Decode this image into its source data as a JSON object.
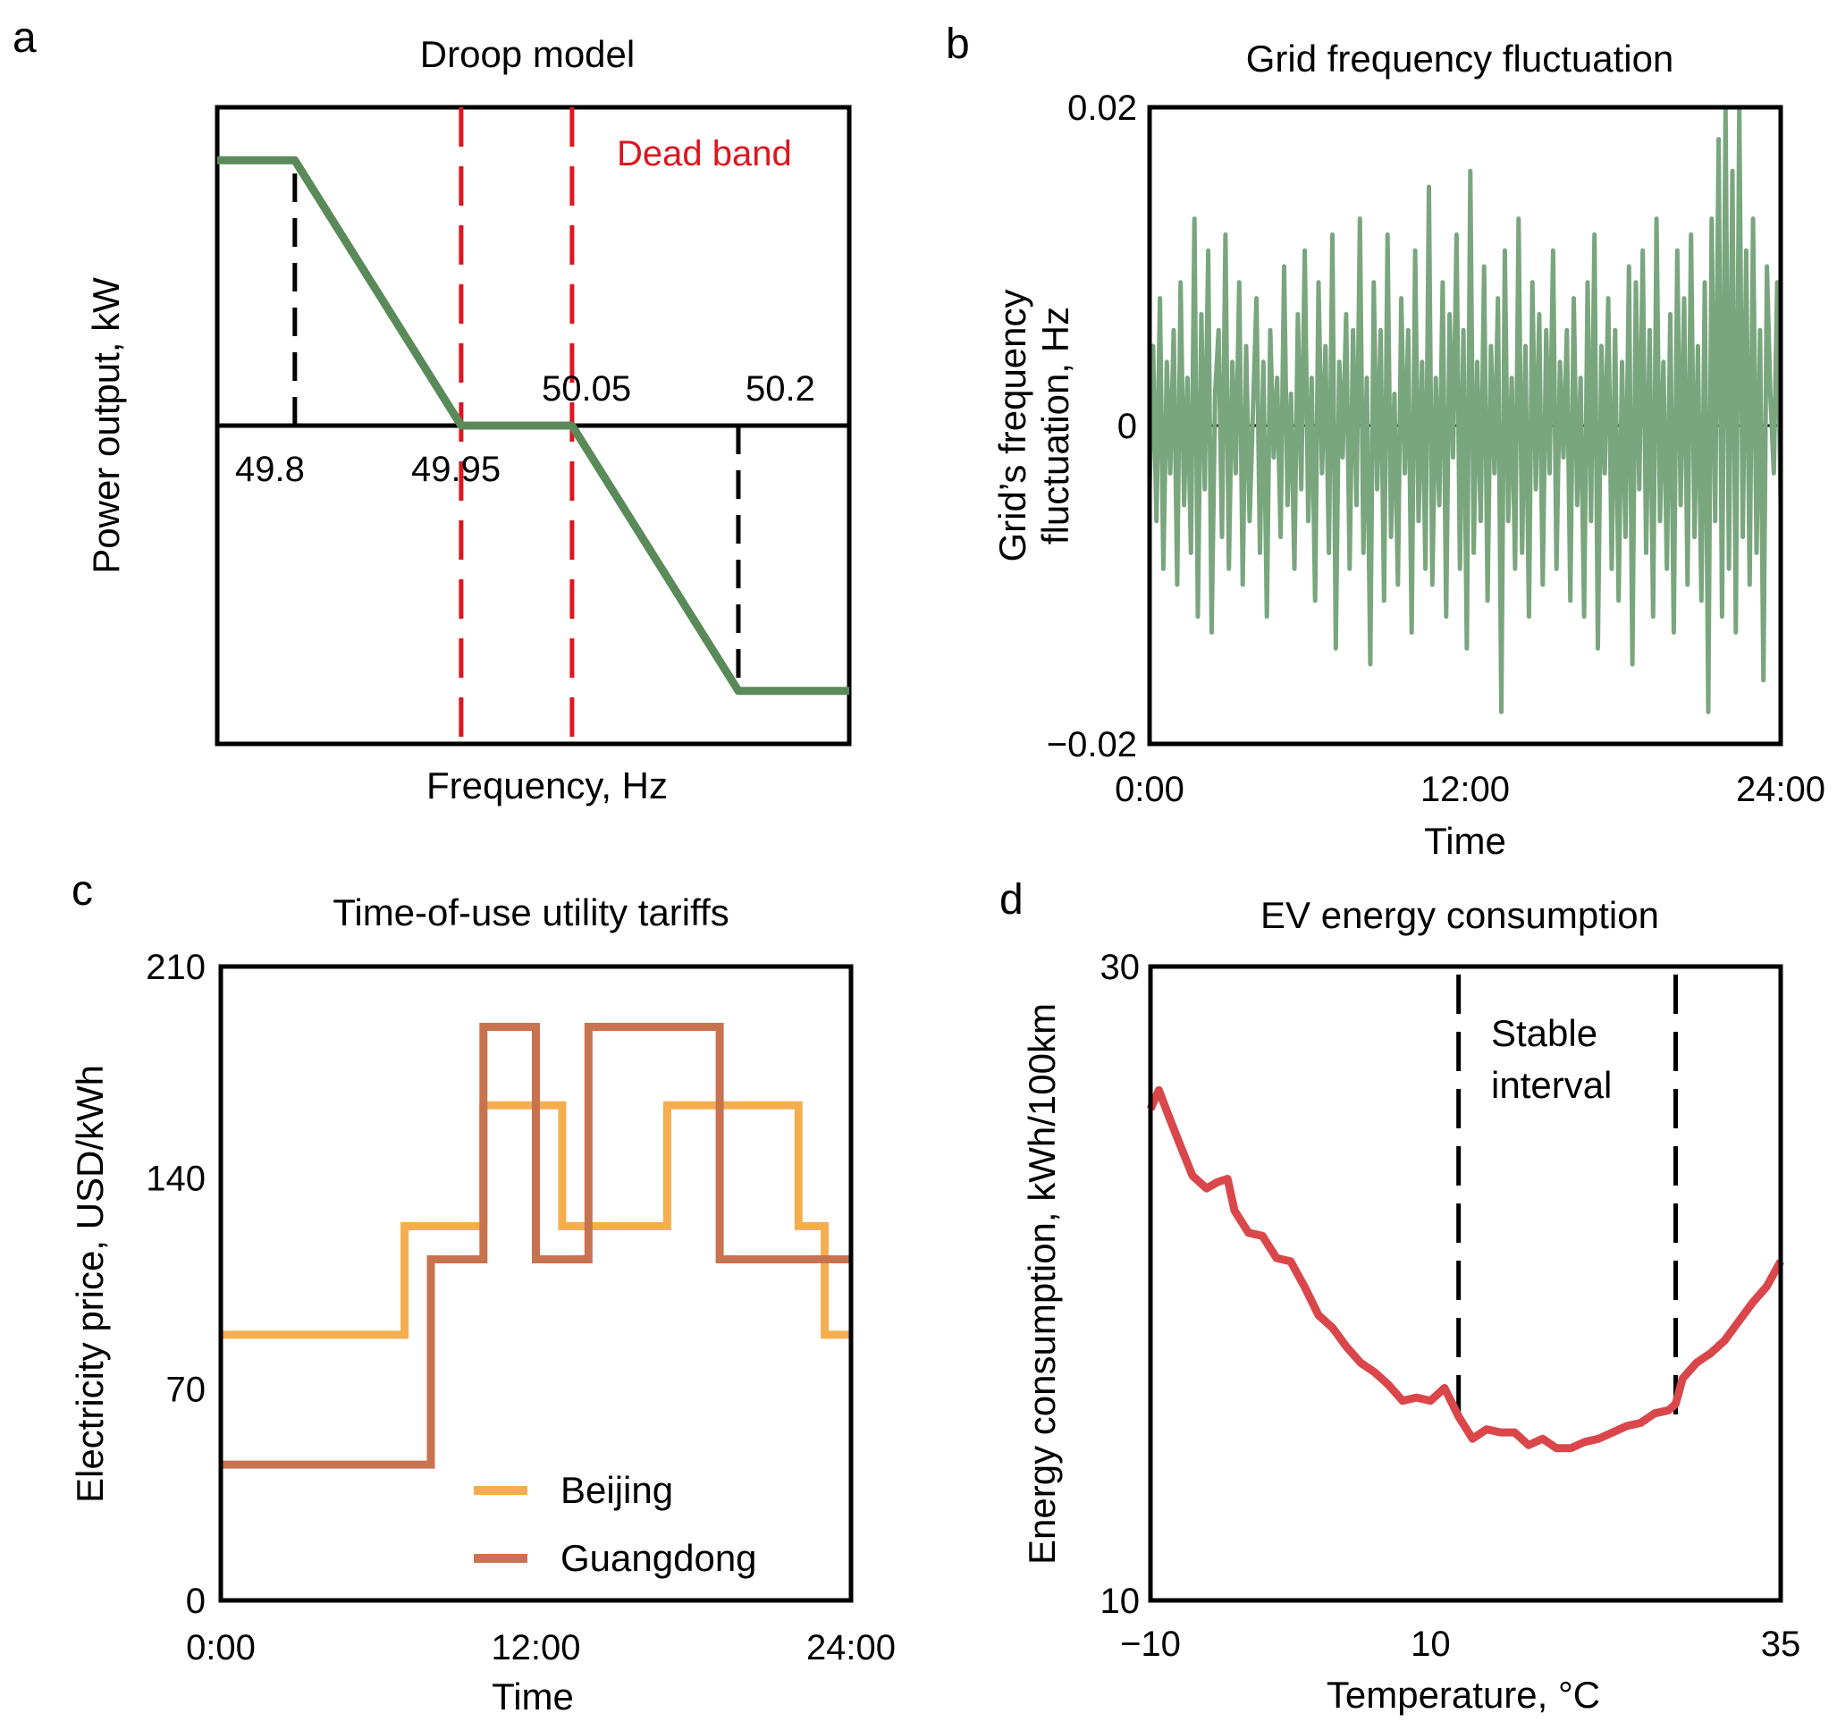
{
  "colors": {
    "droop_green": "#5a8a5a",
    "grid_green": "#7aa67e",
    "dead_band_red": "#e0141e",
    "beijing_orange": "#f5ad4f",
    "guangdong_brown": "#c87350",
    "ev_red": "#d9474b",
    "black": "#000000"
  },
  "chart_data": [
    {
      "panel": "a",
      "type": "line",
      "title": "Droop model",
      "xlabel": "Frequency, Hz",
      "ylabel": "Power output, kW",
      "xlim": [
        49.73,
        50.3
      ],
      "ylim": [
        -1.2,
        1.2
      ],
      "annotations": [
        {
          "text": "49.8",
          "x": 49.8
        },
        {
          "text": "49.95",
          "x": 49.95
        },
        {
          "text": "50.05",
          "x": 50.05
        },
        {
          "text": "50.2",
          "x": 50.2
        },
        {
          "text": "Dead band"
        }
      ],
      "dead_band": [
        49.95,
        50.05
      ],
      "limit_lines": [
        49.8,
        50.2
      ],
      "series": [
        {
          "name": "Droop",
          "x": [
            49.73,
            49.8,
            49.95,
            50.05,
            50.2,
            50.3
          ],
          "y": [
            1,
            1,
            0,
            0,
            -1,
            -1
          ]
        }
      ]
    },
    {
      "panel": "b",
      "type": "line",
      "title": "Grid frequency fluctuation",
      "xlabel": "Time",
      "ylabel_line1": "Grid’s frequency",
      "ylabel_line2": "fluctuation, Hz",
      "xlim": [
        0,
        24
      ],
      "ylim": [
        -0.02,
        0.02
      ],
      "xticks": [
        {
          "v": 0,
          "label": "0:00"
        },
        {
          "v": 12,
          "label": "12:00"
        },
        {
          "v": 24,
          "label": "24:00"
        }
      ],
      "yticks": [
        {
          "v": 0.02,
          "label": "0.02"
        },
        {
          "v": 0,
          "label": "0"
        },
        {
          "v": -0.02,
          "label": "−0.02"
        }
      ],
      "zero_line": true,
      "series": [
        {
          "name": "Grid frequency fluctuation",
          "values": [
            -0.004,
            0.005,
            -0.006,
            0.008,
            -0.009,
            0.004,
            -0.003,
            0.006,
            -0.01,
            0.009,
            -0.005,
            0.003,
            -0.008,
            0.013,
            -0.012,
            0.007,
            -0.004,
            0.011,
            -0.013,
            0.002,
            0.006,
            -0.007,
            0.012,
            -0.009,
            0.004,
            -0.003,
            0.009,
            -0.01,
            0.005,
            -0.006,
            0.001,
            0.008,
            -0.008,
            0.004,
            -0.012,
            0.006,
            -0.002,
            0.003,
            -0.007,
            0.01,
            -0.005,
            0.002,
            -0.009,
            0.007,
            -0.004,
            0.011,
            -0.006,
            0.003,
            -0.011,
            0.009,
            -0.003,
            0.005,
            -0.008,
            0.012,
            -0.014,
            0.004,
            -0.002,
            0.007,
            -0.009,
            0.006,
            -0.005,
            0.013,
            -0.008,
            0.003,
            -0.015,
            0.009,
            -0.004,
            0.006,
            -0.011,
            0.012,
            -0.007,
            0.002,
            -0.01,
            0.008,
            -0.003,
            0.006,
            -0.013,
            0.011,
            -0.006,
            0.004,
            -0.009,
            0.015,
            -0.01,
            0.003,
            -0.005,
            0.009,
            -0.012,
            0.007,
            -0.002,
            0.012,
            -0.009,
            0.006,
            -0.014,
            0.016,
            -0.008,
            0.004,
            -0.006,
            0.01,
            -0.011,
            0.005,
            -0.003,
            0.008,
            -0.018,
            0.011,
            -0.006,
            0.003,
            -0.009,
            0.013,
            -0.008,
            0.005,
            -0.012,
            0.009,
            -0.004,
            0.007,
            -0.01,
            0.006,
            -0.003,
            0.011,
            -0.009,
            0.004,
            -0.002,
            0.006,
            -0.011,
            0.008,
            -0.005,
            0.003,
            -0.012,
            0.009,
            -0.006,
            0.012,
            -0.014,
            0.005,
            -0.003,
            0.008,
            -0.009,
            0.006,
            -0.011,
            0.004,
            -0.007,
            0.01,
            -0.015,
            0.009,
            -0.004,
            0.011,
            -0.008,
            0.006,
            -0.012,
            0.013,
            -0.006,
            0.004,
            -0.009,
            0.007,
            -0.013,
            0.011,
            -0.005,
            0.008,
            -0.01,
            0.012,
            -0.007,
            0.005,
            -0.011,
            0.009,
            -0.018,
            0.013,
            -0.006,
            0.018,
            -0.012,
            0.02,
            -0.009,
            0.016,
            -0.013,
            0.02,
            -0.007,
            0.011,
            -0.01,
            0.013,
            -0.008,
            0.006,
            -0.016,
            0.01,
            0.002,
            -0.003,
            0.009,
            -0.005
          ]
        }
      ]
    },
    {
      "panel": "c",
      "type": "line",
      "title": "Time-of-use utility tariffs",
      "xlabel": "Time",
      "ylabel": "Electricity price, USD/kWh",
      "xlim": [
        0,
        24
      ],
      "ylim": [
        0,
        210
      ],
      "xticks": [
        {
          "v": 0,
          "label": "0:00"
        },
        {
          "v": 12,
          "label": "12:00"
        },
        {
          "v": 24,
          "label": "24:00"
        }
      ],
      "yticks": [
        {
          "v": 0,
          "label": "0"
        },
        {
          "v": 70,
          "label": "70"
        },
        {
          "v": 140,
          "label": "140"
        },
        {
          "v": 210,
          "label": "210"
        }
      ],
      "legend_position": "bottom-right",
      "series": [
        {
          "name": "Beijing",
          "x": [
            0,
            7,
            7,
            10,
            10,
            13,
            13,
            17,
            17,
            22,
            22,
            23,
            23,
            24
          ],
          "y": [
            88,
            88,
            124,
            124,
            164,
            164,
            124,
            124,
            164,
            164,
            124,
            124,
            88,
            88
          ]
        },
        {
          "name": "Guangdong",
          "x": [
            0,
            8,
            8,
            10,
            10,
            12,
            12,
            14,
            14,
            19,
            19,
            24
          ],
          "y": [
            45,
            45,
            113,
            113,
            190,
            190,
            113,
            113,
            190,
            190,
            113,
            113
          ]
        }
      ]
    },
    {
      "panel": "d",
      "type": "line",
      "title": "EV energy consumption",
      "xlabel": "Temperature, °C",
      "ylabel": "Energy consumption, kWh/100km",
      "xlim": [
        -10,
        35
      ],
      "ylim": [
        10,
        30
      ],
      "xticks": [
        {
          "v": -10,
          "label": "−10"
        },
        {
          "v": 10,
          "label": "10"
        },
        {
          "v": 35,
          "label": "35"
        }
      ],
      "yticks": [
        {
          "v": 10,
          "label": "10"
        },
        {
          "v": 30,
          "label": "30"
        }
      ],
      "stable_interval": [
        12,
        27.5
      ],
      "annotation_line1": "Stable",
      "annotation_line2": "interval",
      "series": [
        {
          "name": "EV energy consumption",
          "x": [
            -10,
            -9.4,
            -8.8,
            -8,
            -7,
            -6,
            -5.2,
            -4.5,
            -4,
            -3,
            -2,
            -1,
            0,
            1,
            2,
            3,
            4,
            5,
            6,
            7,
            8,
            9,
            10,
            11,
            12,
            13,
            14,
            15,
            16,
            17,
            18,
            19,
            20,
            21,
            22,
            23,
            24,
            25,
            26,
            27,
            27.5,
            28,
            29,
            30,
            31,
            32,
            33,
            34,
            35
          ],
          "y": [
            25.5,
            26.1,
            25.4,
            24.5,
            23.4,
            23.0,
            23.2,
            23.3,
            22.3,
            21.6,
            21.5,
            20.8,
            20.7,
            19.9,
            19.0,
            18.6,
            18.0,
            17.5,
            17.2,
            16.8,
            16.3,
            16.4,
            16.3,
            16.7,
            15.8,
            15.1,
            15.4,
            15.3,
            15.3,
            14.9,
            15.1,
            14.8,
            14.8,
            15.0,
            15.1,
            15.3,
            15.5,
            15.6,
            15.9,
            16.0,
            16.2,
            17.0,
            17.5,
            17.8,
            18.2,
            18.8,
            19.4,
            19.9,
            20.7
          ]
        }
      ]
    }
  ],
  "panel_letters": {
    "a": "a",
    "b": "b",
    "c": "c",
    "d": "d"
  }
}
